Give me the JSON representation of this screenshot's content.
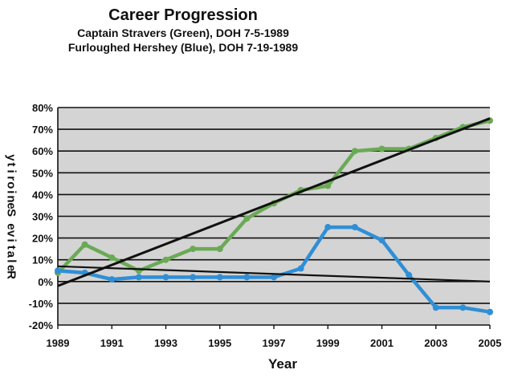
{
  "chart_data": {
    "type": "line",
    "title": "Career Progression",
    "subtitle_lines": [
      "Captain Stravers (Green), DOH 7-5-1989",
      "Furloughed Hershey (Blue), DOH 7-19-1989"
    ],
    "xlabel": "Year",
    "ylabel": "Relative Seniority",
    "x": [
      1989,
      1990,
      1991,
      1992,
      1993,
      1994,
      1995,
      1996,
      1997,
      1998,
      1999,
      2000,
      2001,
      2002,
      2003,
      2004,
      2005
    ],
    "xticks": [
      1989,
      1991,
      1993,
      1995,
      1997,
      1999,
      2001,
      2003,
      2005
    ],
    "xtick_labels": [
      "1989",
      "1991",
      "1993",
      "1995",
      "1997",
      "1999",
      "2001",
      "2003",
      "2005"
    ],
    "xlim": [
      1989,
      2005
    ],
    "ylim": [
      -0.2,
      0.8
    ],
    "yticks": [
      -0.2,
      -0.1,
      0,
      0.1,
      0.2,
      0.3,
      0.4,
      0.5,
      0.6,
      0.7,
      0.8
    ],
    "ytick_labels": [
      "-20%",
      "-10%",
      "0%",
      "10%",
      "20%",
      "30%",
      "40%",
      "50%",
      "60%",
      "70%",
      "80%"
    ],
    "grid": true,
    "plot_background": "#d4d4d4",
    "series": [
      {
        "color": "#6aaa55",
        "values": [
          0.04,
          0.17,
          0.11,
          0.05,
          0.1,
          0.15,
          0.15,
          0.29,
          0.36,
          0.42,
          0.44,
          0.6,
          0.61,
          0.61,
          0.66,
          0.71,
          0.74
        ]
      },
      {
        "color": "#2f8fd6",
        "values": [
          0.05,
          0.04,
          0.01,
          0.02,
          0.02,
          0.02,
          0.02,
          0.02,
          0.02,
          0.06,
          0.25,
          0.25,
          0.19,
          0.03,
          -0.12,
          -0.12,
          -0.14
        ]
      }
    ],
    "trendlines": [
      {
        "color": "#111111",
        "x": [
          1989,
          2005
        ],
        "y": [
          -0.02,
          0.75
        ]
      },
      {
        "color": "#111111",
        "x": [
          1989,
          2005
        ],
        "y": [
          0.07,
          0.0
        ]
      }
    ]
  }
}
